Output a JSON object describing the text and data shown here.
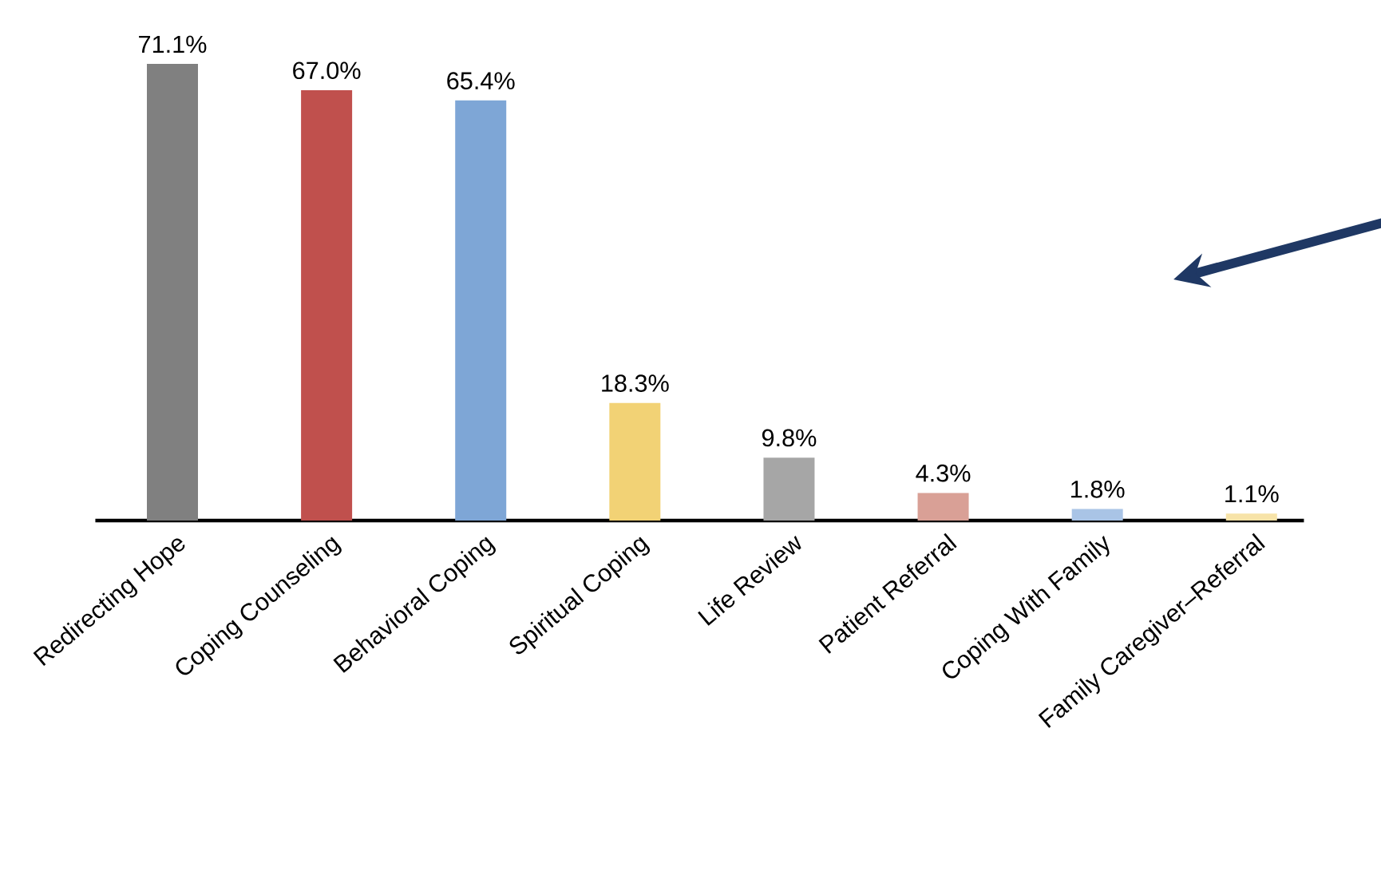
{
  "chart_data": {
    "type": "bar",
    "categories": [
      "Redirecting Hope",
      "Coping Counseling",
      "Behavioral Coping",
      "Spiritual Coping",
      "Life Review",
      "Patient Referral",
      "Coping With Family",
      "Family Caregiver–Referral"
    ],
    "values": [
      71.1,
      67.0,
      65.4,
      18.3,
      9.8,
      4.3,
      1.8,
      1.1
    ],
    "value_labels": [
      "71.1%",
      "67.0%",
      "65.4%",
      "18.3%",
      "9.8%",
      "4.3%",
      "1.8%",
      "1.1%"
    ],
    "colors": [
      "#808080",
      "#c0504d",
      "#7ea6d6",
      "#f2d275",
      "#a6a6a6",
      "#d9a096",
      "#a9c4e6",
      "#f7e3a8"
    ]
  }
}
